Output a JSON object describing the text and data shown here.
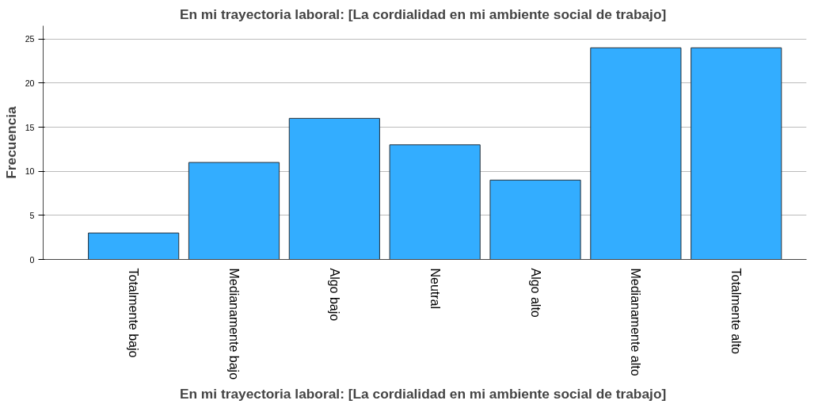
{
  "chart_data": {
    "type": "bar",
    "title": "En mi trayectoria laboral:  [La cordialidad en mi ambiente social de trabajo]",
    "xlabel": "En mi trayectoria laboral:  [La cordialidad en mi ambiente social de trabajo]",
    "ylabel": "Frecuencia",
    "categories": [
      "Totalmente bajo",
      "Medianamente bajo",
      "Algo bajo",
      "Neutral",
      "Algo alto",
      "Medianamente alto",
      "Totalmente alto"
    ],
    "values": [
      3,
      11,
      16,
      13,
      9,
      24,
      24
    ],
    "color": "#33adff",
    "ylim": [
      0,
      26.5
    ],
    "yticks": [
      0,
      5,
      10,
      15,
      20,
      25
    ],
    "grid": "y"
  }
}
